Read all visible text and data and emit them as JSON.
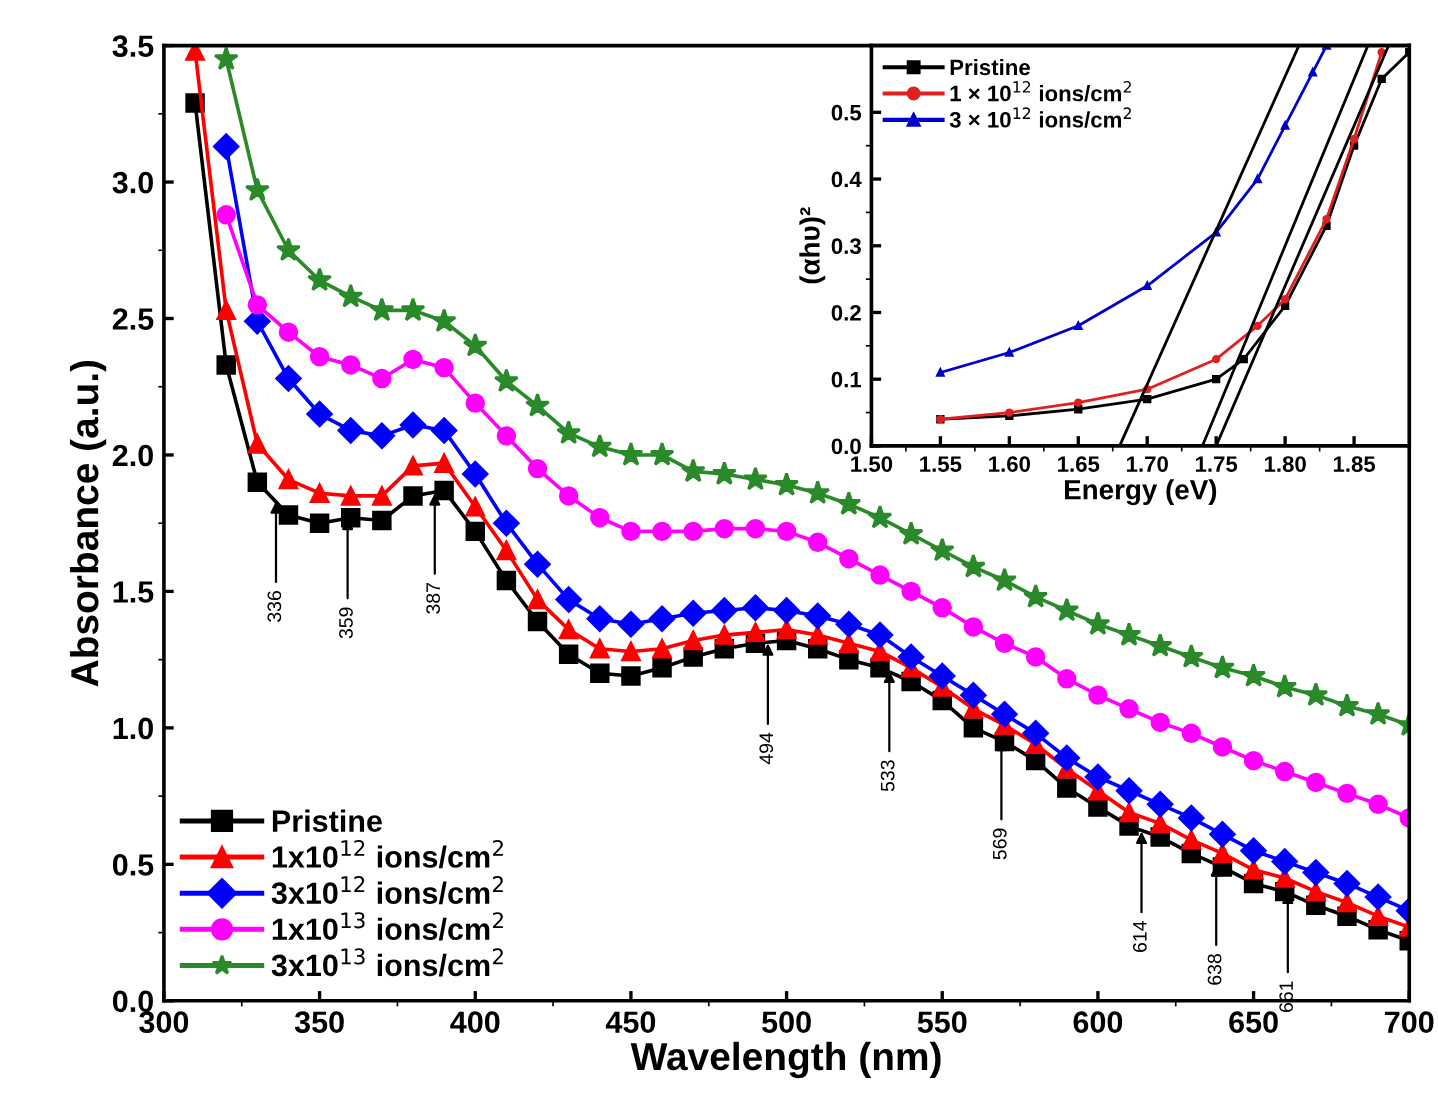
{
  "chart_data": [
    {
      "type": "line",
      "xlabel": "Wavelength (nm)",
      "ylabel": "Absorbance (a.u.)",
      "x": [
        310,
        320,
        330,
        340,
        350,
        360,
        370,
        380,
        390,
        400,
        410,
        420,
        430,
        440,
        450,
        460,
        470,
        480,
        490,
        500,
        510,
        520,
        530,
        540,
        550,
        560,
        570,
        580,
        590,
        600,
        610,
        620,
        630,
        640,
        650,
        660,
        670,
        680,
        690,
        700
      ],
      "series": [
        {
          "name": "Pristine",
          "color": "#000000",
          "marker": "square",
          "values": [
            3.29,
            2.33,
            1.9,
            1.78,
            1.75,
            1.77,
            1.76,
            1.85,
            1.87,
            1.72,
            1.54,
            1.39,
            1.27,
            1.2,
            1.19,
            1.22,
            1.26,
            1.29,
            1.31,
            1.32,
            1.29,
            1.25,
            1.22,
            1.17,
            1.1,
            1.0,
            0.95,
            0.88,
            0.78,
            0.71,
            0.64,
            0.6,
            0.54,
            0.49,
            0.43,
            0.4,
            0.35,
            0.31,
            0.26,
            0.22
          ]
        },
        {
          "name": "1x10$^{12}$ ions/cm$^{2}$",
          "color": "#ff0000",
          "marker": "triangle",
          "values": [
            3.48,
            2.53,
            2.04,
            1.91,
            1.86,
            1.85,
            1.85,
            1.96,
            1.97,
            1.81,
            1.65,
            1.47,
            1.36,
            1.29,
            1.28,
            1.29,
            1.32,
            1.34,
            1.35,
            1.36,
            1.34,
            1.31,
            1.28,
            1.22,
            1.15,
            1.07,
            1.01,
            0.94,
            0.85,
            0.77,
            0.69,
            0.65,
            0.59,
            0.54,
            0.48,
            0.45,
            0.4,
            0.36,
            0.31,
            0.27
          ]
        },
        {
          "name": "3x10$^{12}$ ions/cm$^{2}$",
          "color": "#0000ff",
          "marker": "diamond",
          "values": [
            null,
            3.13,
            2.49,
            2.28,
            2.15,
            2.09,
            2.07,
            2.11,
            2.09,
            1.93,
            1.75,
            1.6,
            1.47,
            1.4,
            1.38,
            1.4,
            1.42,
            1.43,
            1.44,
            1.43,
            1.41,
            1.38,
            1.34,
            1.26,
            1.19,
            1.12,
            1.05,
            0.98,
            0.89,
            0.82,
            0.77,
            0.72,
            0.67,
            0.61,
            0.55,
            0.51,
            0.47,
            0.43,
            0.38,
            0.33
          ]
        },
        {
          "name": "1x10$^{13}$ ions/cm$^{2}$",
          "color": "#ff00ff",
          "marker": "circle",
          "values": [
            null,
            2.88,
            2.55,
            2.45,
            2.36,
            2.33,
            2.28,
            2.35,
            2.32,
            2.19,
            2.07,
            1.95,
            1.85,
            1.77,
            1.72,
            1.72,
            1.72,
            1.73,
            1.73,
            1.72,
            1.68,
            1.62,
            1.56,
            1.5,
            1.44,
            1.37,
            1.31,
            1.26,
            1.18,
            1.12,
            1.07,
            1.02,
            0.98,
            0.93,
            0.88,
            0.84,
            0.8,
            0.76,
            0.72,
            0.67
          ]
        },
        {
          "name": "3x10$^{13}$ ions/cm$^{2}$",
          "color": "#2a8a2a",
          "marker": "star",
          "values": [
            null,
            3.45,
            2.97,
            2.75,
            2.64,
            2.58,
            2.53,
            2.53,
            2.49,
            2.4,
            2.27,
            2.18,
            2.08,
            2.03,
            2.0,
            2.0,
            1.94,
            1.93,
            1.91,
            1.89,
            1.86,
            1.82,
            1.77,
            1.71,
            1.65,
            1.59,
            1.54,
            1.48,
            1.43,
            1.38,
            1.34,
            1.3,
            1.26,
            1.22,
            1.19,
            1.15,
            1.12,
            1.08,
            1.05,
            1.01
          ]
        }
      ],
      "xlim": [
        300,
        700
      ],
      "xticks": [
        300,
        350,
        400,
        450,
        500,
        550,
        600,
        650,
        700
      ],
      "ylim": [
        0,
        3.5
      ],
      "yticks": [
        {
          "value": 0,
          "label": "0.0"
        },
        {
          "value": 0.5,
          "label": "0.5"
        },
        {
          "value": 1,
          "label": "1.0"
        },
        {
          "value": 1.5,
          "label": "1.5"
        },
        {
          "value": 2,
          "label": "2.0"
        },
        {
          "value": 2.5,
          "label": "2.5"
        },
        {
          "value": 3,
          "label": "3.0"
        },
        {
          "value": 3.5,
          "label": "3.5"
        }
      ],
      "legend": "bottom left",
      "annotations": [
        {
          "text": "336",
          "x": 336,
          "y": 1.83
        },
        {
          "text": "359",
          "x": 359,
          "y": 1.77
        },
        {
          "text": "387",
          "x": 387,
          "y": 1.86
        },
        {
          "text": "494",
          "x": 494,
          "y": 1.31
        },
        {
          "text": "533",
          "x": 533,
          "y": 1.21
        },
        {
          "text": "569",
          "x": 569,
          "y": 0.96
        },
        {
          "text": "614",
          "x": 614,
          "y": 0.62
        },
        {
          "text": "638",
          "x": 638,
          "y": 0.5
        },
        {
          "text": "661",
          "x": 661,
          "y": 0.4
        }
      ]
    },
    {
      "type": "line",
      "xlabel": "Energy (eV)",
      "ylabel": "(αhυ)²",
      "series": [
        {
          "name": "Pristine",
          "color": "#000000",
          "marker": "square",
          "x": [
            1.55,
            1.6,
            1.65,
            1.7,
            1.75,
            1.77,
            1.8,
            1.83,
            1.85,
            1.87,
            1.89
          ],
          "values": [
            0.04,
            0.045,
            0.055,
            0.07,
            0.1,
            0.13,
            0.21,
            0.33,
            0.45,
            0.55,
            0.59
          ]
        },
        {
          "name": "1 × 10$^{12}$ ions/cm$^{2}$",
          "color": "#e02020",
          "marker": "circle",
          "x": [
            1.55,
            1.6,
            1.65,
            1.7,
            1.75,
            1.78,
            1.8,
            1.83,
            1.85,
            1.87
          ],
          "values": [
            0.04,
            0.05,
            0.065,
            0.085,
            0.13,
            0.18,
            0.22,
            0.34,
            0.46,
            0.59
          ]
        },
        {
          "name": "3 × 10$^{12}$ ions/cm$^{2}$",
          "color": "#0000cc",
          "marker": "triangle",
          "x": [
            1.55,
            1.6,
            1.65,
            1.7,
            1.75,
            1.78,
            1.8,
            1.82,
            1.83
          ],
          "values": [
            0.11,
            0.14,
            0.18,
            0.24,
            0.32,
            0.4,
            0.48,
            0.56,
            0.6
          ]
        },
        {
          "type": "line",
          "color": "#000000",
          "marker": "none",
          "x": [
            1.68,
            1.81
          ],
          "values": [
            0,
            0.6
          ]
        },
        {
          "type": "line",
          "color": "#000000",
          "marker": "none",
          "x": [
            1.74,
            1.86
          ],
          "values": [
            0,
            0.6
          ]
        },
        {
          "type": "line",
          "color": "#000000",
          "marker": "none",
          "x": [
            1.75,
            1.875
          ],
          "values": [
            0,
            0.6
          ]
        }
      ],
      "xlim": [
        1.5,
        1.89
      ],
      "xticks": [
        {
          "value": 1.5,
          "label": "1.50"
        },
        {
          "value": 1.55,
          "label": "1.55"
        },
        {
          "value": 1.6,
          "label": "1.60"
        },
        {
          "value": 1.65,
          "label": "1.65"
        },
        {
          "value": 1.7,
          "label": "1.70"
        },
        {
          "value": 1.75,
          "label": "1.75"
        },
        {
          "value": 1.8,
          "label": "1.80"
        },
        {
          "value": 1.85,
          "label": "1.85"
        }
      ],
      "ylim": [
        0,
        0.6
      ],
      "yticks": [
        {
          "value": 0,
          "label": "0.0"
        },
        {
          "value": 0.1,
          "label": "0.1"
        },
        {
          "value": 0.2,
          "label": "0.2"
        },
        {
          "value": 0.3,
          "label": "0.3"
        },
        {
          "value": 0.4,
          "label": "0.4"
        },
        {
          "value": 0.5,
          "label": "0.5"
        }
      ],
      "legend": "top left"
    }
  ]
}
